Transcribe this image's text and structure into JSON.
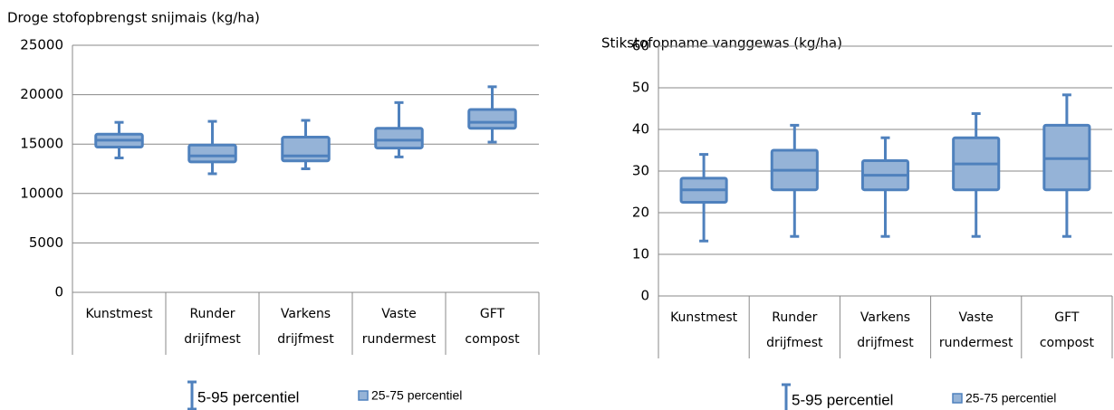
{
  "chart_data": [
    {
      "type": "box",
      "title": "Droge stofopbrengst snijmais (kg/ha)",
      "categories": [
        [
          "Kunstmest"
        ],
        [
          "Runder",
          "drijfmest"
        ],
        [
          "Varkens",
          "drijfmest"
        ],
        [
          "Vaste",
          "rundermest"
        ],
        [
          "GFT",
          "compost"
        ]
      ],
      "low": [
        13600,
        12000,
        12500,
        13700,
        15200
      ],
      "q1": [
        14700,
        13200,
        13300,
        14600,
        16600
      ],
      "median": [
        15400,
        13800,
        13800,
        15400,
        17200
      ],
      "q3": [
        16000,
        14900,
        15700,
        16600,
        18500
      ],
      "high": [
        17200,
        17300,
        17400,
        19200,
        20800
      ],
      "legend": [
        "5-95 percentiel",
        "25-75 percentiel"
      ],
      "color": "#95b3d7",
      "line_color": "#4f81bd",
      "ylim": [
        0,
        25000
      ],
      "yticks": [
        0,
        5000,
        10000,
        15000,
        20000,
        25000
      ],
      "grid": true
    },
    {
      "type": "box",
      "title": "Stikstofopname vanggewas (kg/ha)",
      "categories": [
        [
          "Kunstmest"
        ],
        [
          "Runder",
          "drijfmest"
        ],
        [
          "Varkens",
          "drijfmest"
        ],
        [
          "Vaste",
          "rundermest"
        ],
        [
          "GFT",
          "compost"
        ]
      ],
      "low": [
        13.2,
        14.3,
        14.3,
        14.3,
        14.3
      ],
      "q1": [
        22.5,
        25.5,
        25.5,
        25.5,
        25.5
      ],
      "median": [
        25.5,
        30.2,
        29,
        31.7,
        33
      ],
      "q3": [
        28.3,
        35,
        32.5,
        38,
        41
      ],
      "high": [
        34,
        41,
        38,
        43.8,
        48.3
      ],
      "legend": [
        "5-95 percentiel",
        "25-75 percentiel"
      ],
      "color": "#95b3d7",
      "line_color": "#4f81bd",
      "ylim": [
        0,
        60
      ],
      "yticks": [
        0,
        10,
        20,
        30,
        40,
        50,
        60
      ],
      "grid": true
    }
  ]
}
